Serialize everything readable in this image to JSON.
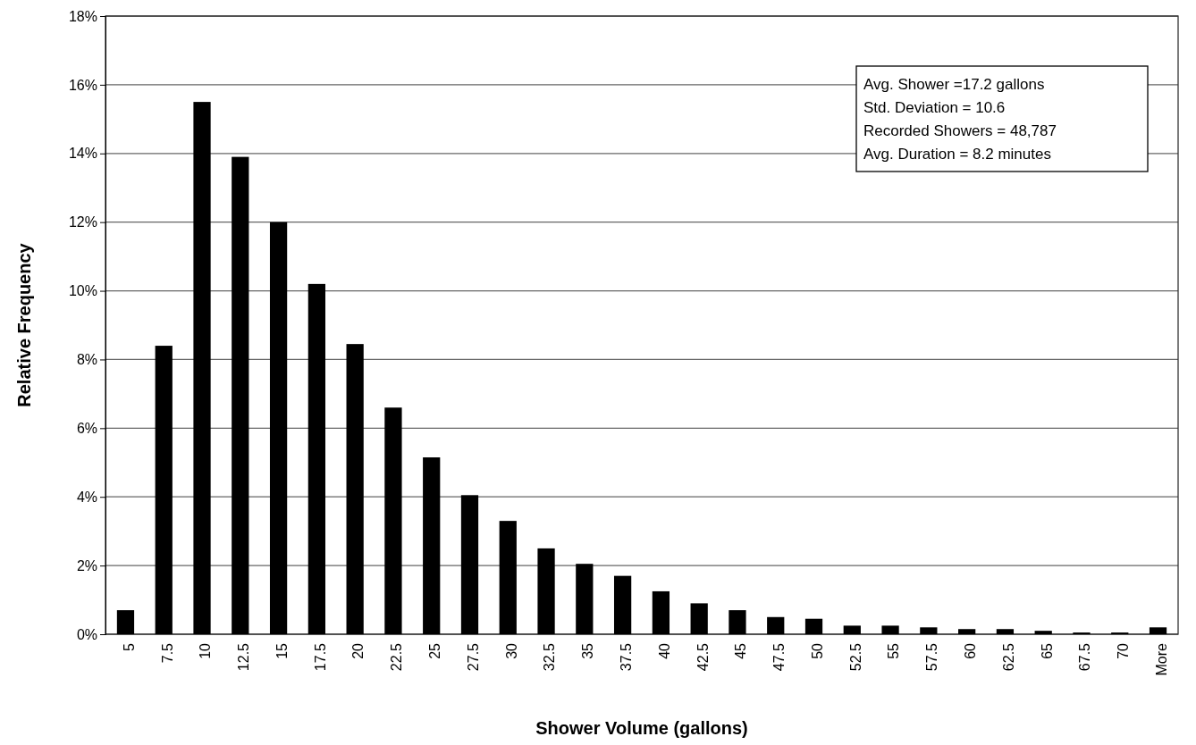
{
  "chart_data": {
    "type": "bar",
    "xlabel": "Shower Volume (gallons)",
    "ylabel": "Relative Frequency",
    "categories": [
      "5",
      "7.5",
      "10",
      "12.5",
      "15",
      "17.5",
      "20",
      "22.5",
      "25",
      "27.5",
      "30",
      "32.5",
      "35",
      "37.5",
      "40",
      "42.5",
      "45",
      "47.5",
      "50",
      "52.5",
      "55",
      "57.5",
      "60",
      "62.5",
      "65",
      "67.5",
      "70",
      "More"
    ],
    "values": [
      0.7,
      8.4,
      15.5,
      13.9,
      12.0,
      10.2,
      8.45,
      6.6,
      5.15,
      4.05,
      3.3,
      2.5,
      2.05,
      1.7,
      1.25,
      0.9,
      0.7,
      0.5,
      0.45,
      0.25,
      0.25,
      0.2,
      0.15,
      0.15,
      0.1,
      0.05,
      0.05,
      0.2
    ],
    "color": "#000000",
    "ylim": [
      0,
      18
    ],
    "yticks": [
      {
        "value": 0,
        "label": "0%"
      },
      {
        "value": 2,
        "label": "2%"
      },
      {
        "value": 4,
        "label": "4%"
      },
      {
        "value": 6,
        "label": "6%"
      },
      {
        "value": 8,
        "label": "8%"
      },
      {
        "value": 10,
        "label": "10%"
      },
      {
        "value": 12,
        "label": "12%"
      },
      {
        "value": 14,
        "label": "14%"
      },
      {
        "value": 16,
        "label": "16%"
      },
      {
        "value": 18,
        "label": "18%"
      }
    ],
    "grid": "y",
    "annotations": [
      "Avg. Shower =17.2 gallons",
      "Std. Deviation = 10.6",
      "Recorded Showers = 48,787",
      "Avg. Duration = 8.2 minutes"
    ]
  }
}
